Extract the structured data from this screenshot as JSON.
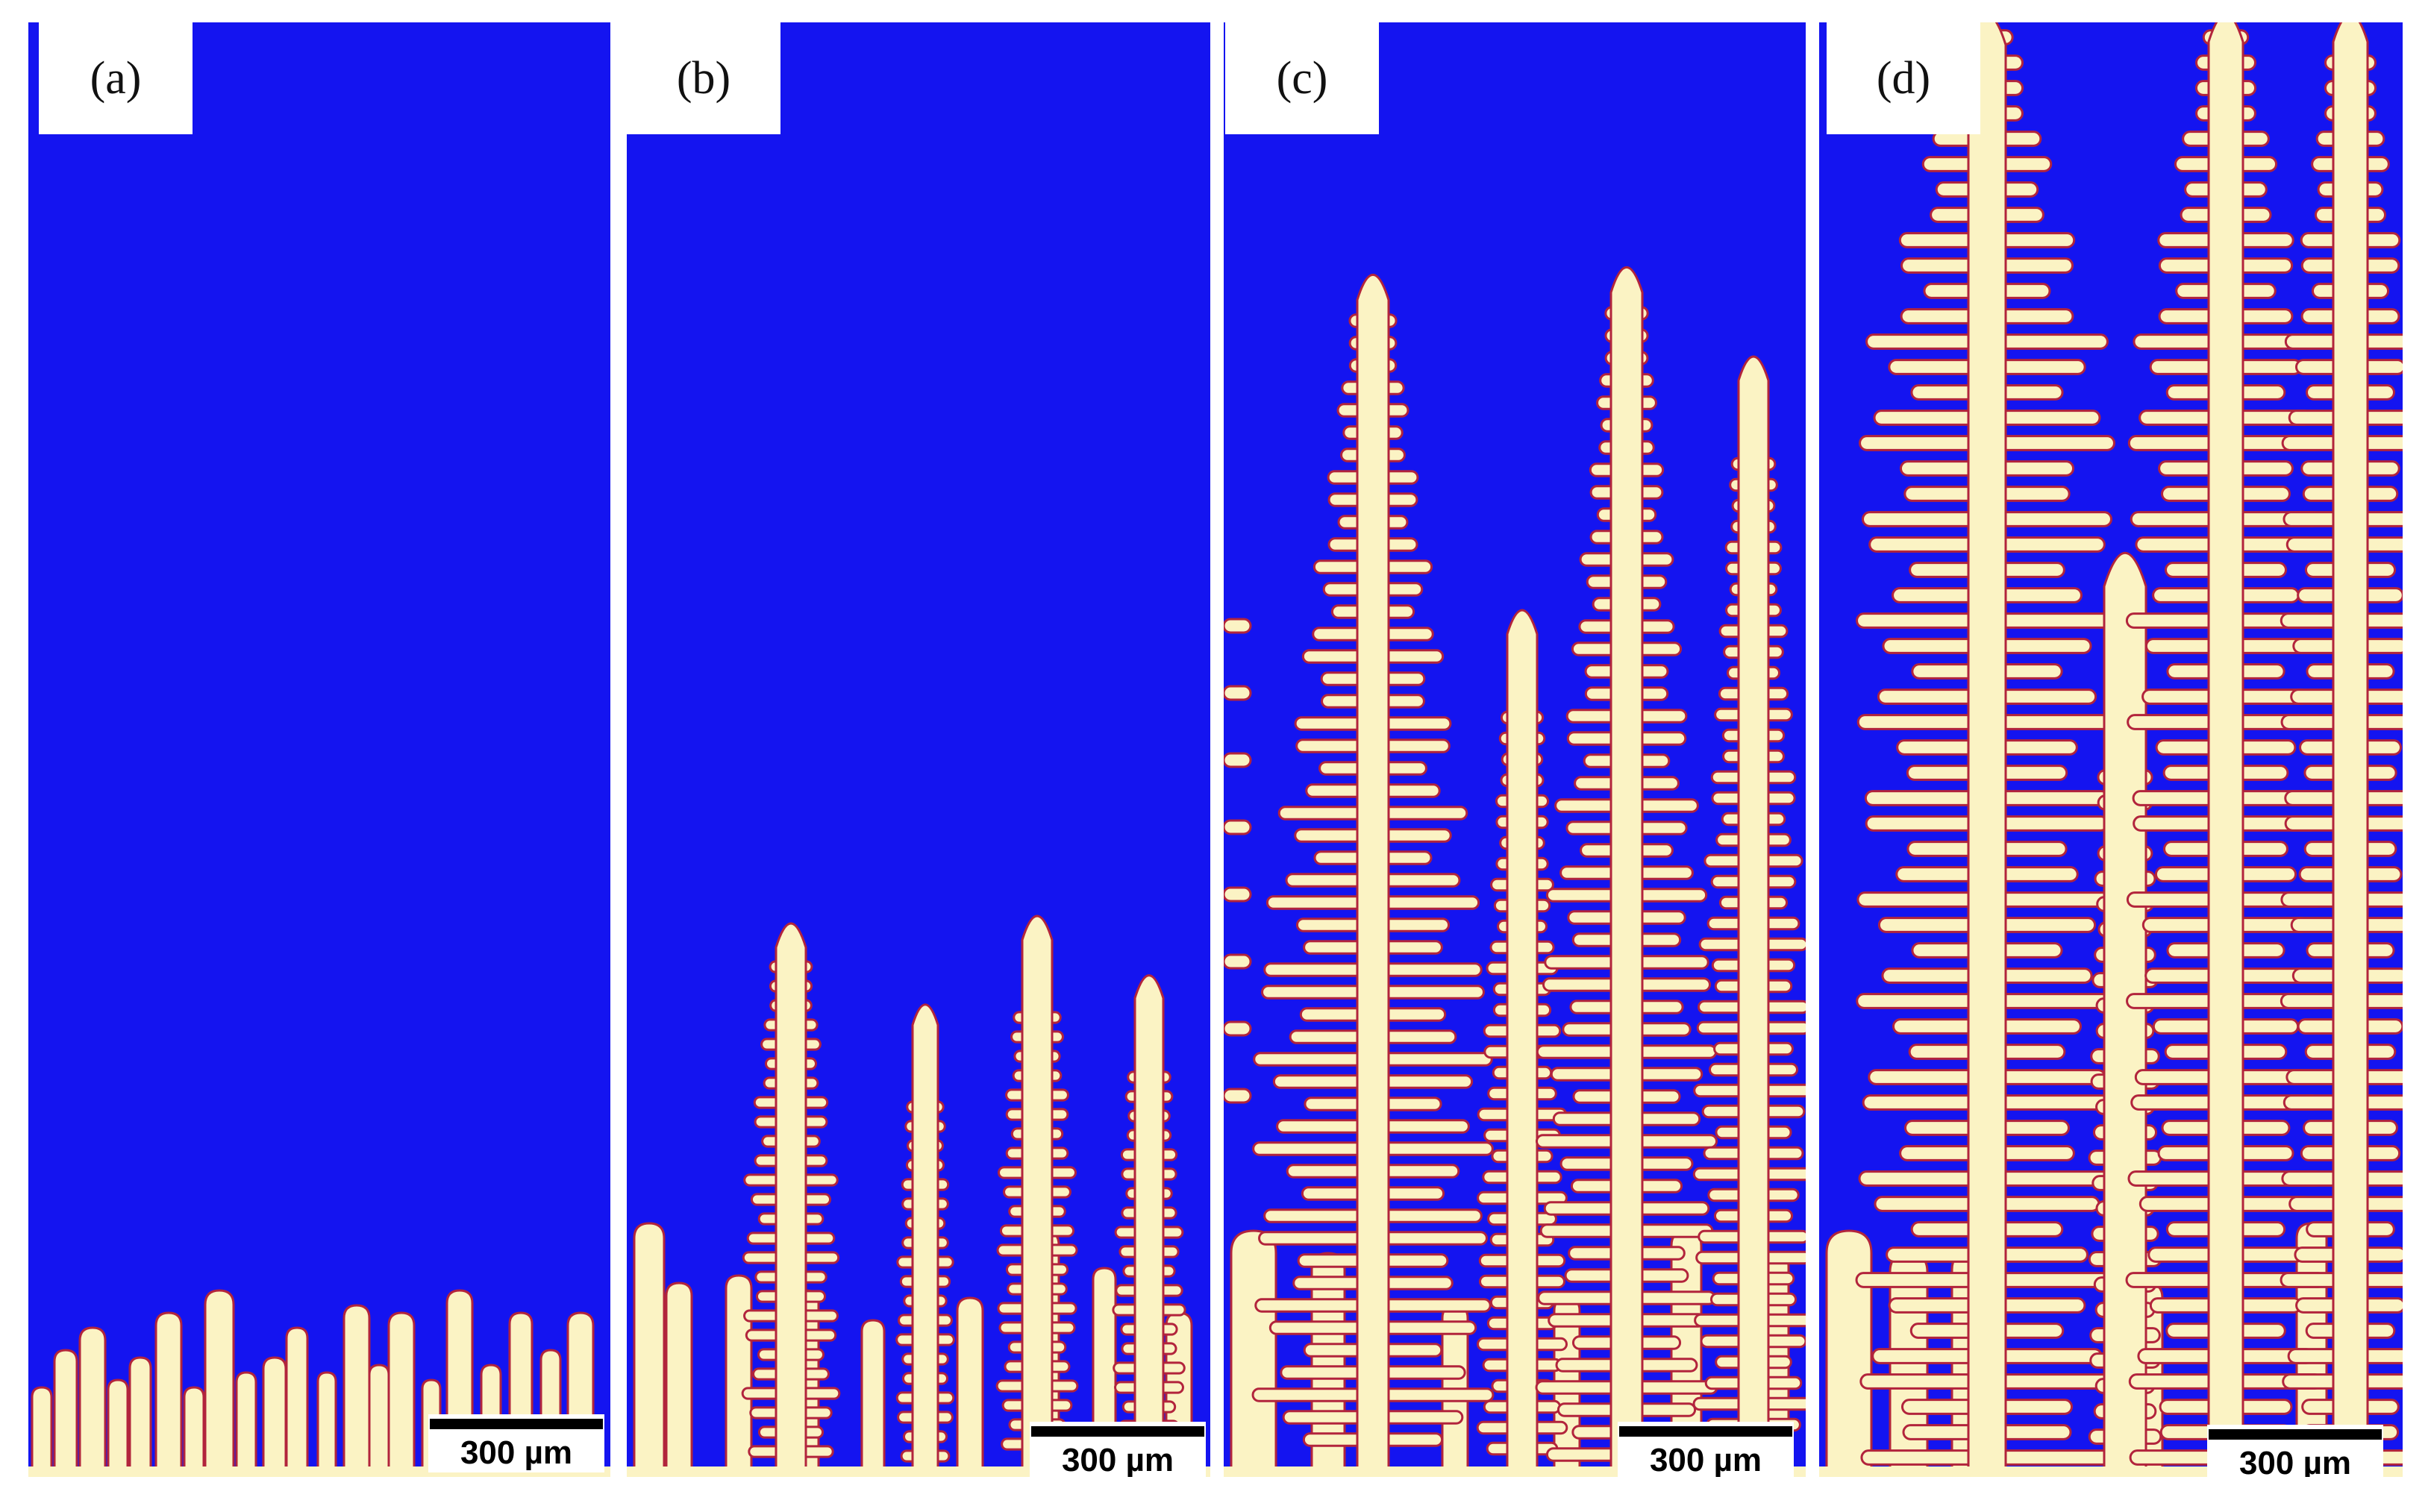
{
  "figure": {
    "panels": [
      {
        "label": "(a)",
        "scale_bar_text": "300 µm"
      },
      {
        "label": "(b)",
        "scale_bar_text": "300 µm"
      },
      {
        "label": "(c)",
        "scale_bar_text": "300 µm"
      },
      {
        "label": "(d)",
        "scale_bar_text": "300 µm"
      }
    ]
  },
  "colors": {
    "melt": "#1414f0",
    "solid": "#fbf3c4",
    "interface": "#b2243c",
    "background": "#ffffff"
  }
}
